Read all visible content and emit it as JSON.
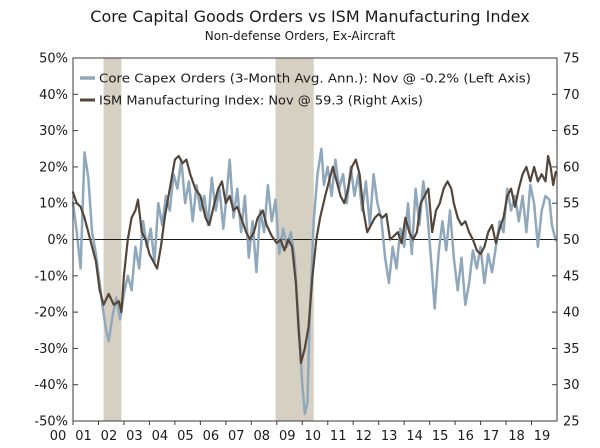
{
  "chart_data": {
    "type": "line",
    "title": "Core Capital Goods Orders vs ISM Manufacturing Index",
    "subtitle": "Non-defense Orders, Ex-Aircraft",
    "x_tick_labels": [
      "00",
      "01",
      "02",
      "03",
      "04",
      "05",
      "06",
      "07",
      "08",
      "09",
      "10",
      "11",
      "12",
      "13",
      "14",
      "15",
      "16",
      "17",
      "18",
      "19"
    ],
    "x_range": [
      2000.0,
      2019.0
    ],
    "left_axis": {
      "ticks": [
        "50%",
        "40%",
        "30%",
        "20%",
        "10%",
        "0%",
        "-10%",
        "-20%",
        "-30%",
        "-40%",
        "-50%"
      ],
      "ylim": [
        -50,
        50
      ],
      "unit": "%"
    },
    "right_axis": {
      "ticks": [
        "75",
        "70",
        "65",
        "60",
        "55",
        "50",
        "45",
        "40",
        "35",
        "30",
        "25"
      ],
      "ylim": [
        25,
        75
      ]
    },
    "zero_line": 0,
    "grid": false,
    "legend_position": "top-left",
    "recessions": [
      {
        "start": 2001.2,
        "end": 2001.9
      },
      {
        "start": 2007.95,
        "end": 2009.45
      }
    ],
    "series": [
      {
        "name": "Core Capex Orders (3-Month Avg. Ann.): Nov @ -0.2% (Left Axis)",
        "axis": "left",
        "color": "#8fa8bc",
        "points": [
          [
            2000.0,
            10
          ],
          [
            2000.15,
            2
          ],
          [
            2000.3,
            -8
          ],
          [
            2000.45,
            24
          ],
          [
            2000.6,
            17
          ],
          [
            2000.75,
            2
          ],
          [
            2000.9,
            -4
          ],
          [
            2001.05,
            -12
          ],
          [
            2001.15,
            -18
          ],
          [
            2001.3,
            -25
          ],
          [
            2001.4,
            -28
          ],
          [
            2001.55,
            -21
          ],
          [
            2001.7,
            -16
          ],
          [
            2001.85,
            -22
          ],
          [
            2002.0,
            -15
          ],
          [
            2002.15,
            -10
          ],
          [
            2002.3,
            -14
          ],
          [
            2002.45,
            -2
          ],
          [
            2002.6,
            -8
          ],
          [
            2002.75,
            5
          ],
          [
            2002.9,
            -2
          ],
          [
            2003.05,
            3
          ],
          [
            2003.2,
            -6
          ],
          [
            2003.35,
            10
          ],
          [
            2003.5,
            4
          ],
          [
            2003.65,
            12
          ],
          [
            2003.8,
            8
          ],
          [
            2003.95,
            18
          ],
          [
            2004.1,
            14
          ],
          [
            2004.25,
            22
          ],
          [
            2004.4,
            10
          ],
          [
            2004.55,
            16
          ],
          [
            2004.7,
            5
          ],
          [
            2004.85,
            15
          ],
          [
            2005.0,
            8
          ],
          [
            2005.15,
            12
          ],
          [
            2005.3,
            4
          ],
          [
            2005.45,
            17
          ],
          [
            2005.6,
            8
          ],
          [
            2005.75,
            14
          ],
          [
            2005.9,
            3
          ],
          [
            2006.0,
            10
          ],
          [
            2006.15,
            22
          ],
          [
            2006.3,
            6
          ],
          [
            2006.45,
            14
          ],
          [
            2006.6,
            2
          ],
          [
            2006.75,
            12
          ],
          [
            2006.9,
            -5
          ],
          [
            2007.05,
            5
          ],
          [
            2007.2,
            -9
          ],
          [
            2007.35,
            8
          ],
          [
            2007.5,
            2
          ],
          [
            2007.65,
            15
          ],
          [
            2007.8,
            5
          ],
          [
            2007.95,
            11
          ],
          [
            2008.1,
            -4
          ],
          [
            2008.25,
            3
          ],
          [
            2008.4,
            -2
          ],
          [
            2008.55,
            2
          ],
          [
            2008.7,
            -5
          ],
          [
            2008.85,
            -22
          ],
          [
            2009.0,
            -40
          ],
          [
            2009.1,
            -48
          ],
          [
            2009.2,
            -45
          ],
          [
            2009.3,
            -20
          ],
          [
            2009.45,
            5
          ],
          [
            2009.6,
            18
          ],
          [
            2009.75,
            25
          ],
          [
            2009.85,
            15
          ],
          [
            2010.0,
            20
          ],
          [
            2010.15,
            12
          ],
          [
            2010.3,
            22
          ],
          [
            2010.45,
            14
          ],
          [
            2010.6,
            18
          ],
          [
            2010.75,
            10
          ],
          [
            2010.9,
            20
          ],
          [
            2011.05,
            12
          ],
          [
            2011.2,
            18
          ],
          [
            2011.35,
            8
          ],
          [
            2011.5,
            16
          ],
          [
            2011.65,
            4
          ],
          [
            2011.8,
            18
          ],
          [
            2011.95,
            10
          ],
          [
            2012.1,
            6
          ],
          [
            2012.25,
            -5
          ],
          [
            2012.4,
            -12
          ],
          [
            2012.55,
            -2
          ],
          [
            2012.7,
            -8
          ],
          [
            2012.85,
            3
          ],
          [
            2013.0,
            -2
          ],
          [
            2013.15,
            10
          ],
          [
            2013.3,
            -4
          ],
          [
            2013.45,
            14
          ],
          [
            2013.6,
            4
          ],
          [
            2013.75,
            16
          ],
          [
            2013.9,
            8
          ],
          [
            2014.05,
            -5
          ],
          [
            2014.2,
            -19
          ],
          [
            2014.35,
            -4
          ],
          [
            2014.5,
            5
          ],
          [
            2014.65,
            -3
          ],
          [
            2014.8,
            8
          ],
          [
            2014.95,
            -5
          ],
          [
            2015.1,
            -14
          ],
          [
            2015.25,
            -5
          ],
          [
            2015.4,
            -18
          ],
          [
            2015.55,
            -12
          ],
          [
            2015.7,
            -3
          ],
          [
            2015.85,
            -8
          ],
          [
            2016.0,
            -2
          ],
          [
            2016.15,
            -12
          ],
          [
            2016.3,
            -4
          ],
          [
            2016.45,
            -9
          ],
          [
            2016.6,
            -2
          ],
          [
            2016.75,
            5
          ],
          [
            2016.9,
            2
          ],
          [
            2017.05,
            14
          ],
          [
            2017.2,
            8
          ],
          [
            2017.35,
            12
          ],
          [
            2017.5,
            5
          ],
          [
            2017.65,
            12
          ],
          [
            2017.8,
            2
          ],
          [
            2017.95,
            15
          ],
          [
            2018.1,
            10
          ],
          [
            2018.25,
            -2
          ],
          [
            2018.4,
            8
          ],
          [
            2018.55,
            12
          ],
          [
            2018.7,
            11
          ],
          [
            2018.8,
            4
          ],
          [
            2018.95,
            -0.2
          ]
        ]
      },
      {
        "name": "ISM Manufacturing Index: Nov @ 59.3 (Right Axis)",
        "axis": "right",
        "color": "#54463a",
        "points": [
          [
            2000.0,
            56.5
          ],
          [
            2000.15,
            55
          ],
          [
            2000.3,
            54.5
          ],
          [
            2000.45,
            53
          ],
          [
            2000.6,
            51
          ],
          [
            2000.75,
            49
          ],
          [
            2000.9,
            47
          ],
          [
            2001.05,
            43
          ],
          [
            2001.2,
            41
          ],
          [
            2001.4,
            42.5
          ],
          [
            2001.6,
            41
          ],
          [
            2001.8,
            41.5
          ],
          [
            2001.9,
            40
          ],
          [
            2002.0,
            45
          ],
          [
            2002.15,
            50
          ],
          [
            2002.3,
            53
          ],
          [
            2002.45,
            54
          ],
          [
            2002.55,
            55.5
          ],
          [
            2002.7,
            51
          ],
          [
            2002.85,
            50
          ],
          [
            2003.0,
            48
          ],
          [
            2003.15,
            47
          ],
          [
            2003.3,
            46
          ],
          [
            2003.45,
            49
          ],
          [
            2003.6,
            53
          ],
          [
            2003.8,
            57
          ],
          [
            2004.0,
            61
          ],
          [
            2004.15,
            61.5
          ],
          [
            2004.3,
            60.5
          ],
          [
            2004.45,
            61
          ],
          [
            2004.6,
            59
          ],
          [
            2004.8,
            57
          ],
          [
            2005.0,
            56
          ],
          [
            2005.2,
            53
          ],
          [
            2005.35,
            52
          ],
          [
            2005.55,
            55
          ],
          [
            2005.7,
            57
          ],
          [
            2005.85,
            58
          ],
          [
            2006.0,
            55
          ],
          [
            2006.15,
            56
          ],
          [
            2006.3,
            54
          ],
          [
            2006.45,
            54.5
          ],
          [
            2006.6,
            53
          ],
          [
            2006.8,
            51
          ],
          [
            2006.95,
            50
          ],
          [
            2007.1,
            51
          ],
          [
            2007.25,
            53
          ],
          [
            2007.45,
            54
          ],
          [
            2007.6,
            52
          ],
          [
            2007.8,
            50.5
          ],
          [
            2008.0,
            49.5
          ],
          [
            2008.15,
            50
          ],
          [
            2008.3,
            48.5
          ],
          [
            2008.45,
            50
          ],
          [
            2008.6,
            49
          ],
          [
            2008.75,
            44
          ],
          [
            2008.85,
            38
          ],
          [
            2008.95,
            33
          ],
          [
            2009.1,
            35
          ],
          [
            2009.25,
            38
          ],
          [
            2009.4,
            45
          ],
          [
            2009.55,
            50
          ],
          [
            2009.7,
            53
          ],
          [
            2009.9,
            56
          ],
          [
            2010.05,
            58
          ],
          [
            2010.2,
            60
          ],
          [
            2010.35,
            58
          ],
          [
            2010.5,
            56
          ],
          [
            2010.65,
            55
          ],
          [
            2010.8,
            57
          ],
          [
            2010.95,
            60
          ],
          [
            2011.1,
            61
          ],
          [
            2011.25,
            59
          ],
          [
            2011.4,
            54
          ],
          [
            2011.55,
            51
          ],
          [
            2011.7,
            52
          ],
          [
            2011.85,
            53
          ],
          [
            2012.0,
            53.5
          ],
          [
            2012.15,
            53
          ],
          [
            2012.3,
            53.5
          ],
          [
            2012.45,
            50
          ],
          [
            2012.6,
            50.5
          ],
          [
            2012.75,
            51
          ],
          [
            2012.9,
            49.5
          ],
          [
            2013.05,
            53
          ],
          [
            2013.2,
            51
          ],
          [
            2013.35,
            50
          ],
          [
            2013.5,
            51
          ],
          [
            2013.65,
            55
          ],
          [
            2013.8,
            56
          ],
          [
            2013.95,
            57
          ],
          [
            2014.1,
            51
          ],
          [
            2014.25,
            54
          ],
          [
            2014.4,
            55
          ],
          [
            2014.55,
            57
          ],
          [
            2014.7,
            58
          ],
          [
            2014.85,
            57
          ],
          [
            2014.95,
            55
          ],
          [
            2015.1,
            53
          ],
          [
            2015.25,
            52
          ],
          [
            2015.4,
            52.5
          ],
          [
            2015.55,
            51
          ],
          [
            2015.7,
            50
          ],
          [
            2015.85,
            48.5
          ],
          [
            2016.0,
            48
          ],
          [
            2016.15,
            49
          ],
          [
            2016.3,
            51
          ],
          [
            2016.45,
            52
          ],
          [
            2016.6,
            49.5
          ],
          [
            2016.75,
            51.5
          ],
          [
            2016.9,
            53
          ],
          [
            2017.05,
            56
          ],
          [
            2017.2,
            57
          ],
          [
            2017.35,
            54.5
          ],
          [
            2017.5,
            57
          ],
          [
            2017.65,
            59
          ],
          [
            2017.8,
            60
          ],
          [
            2017.95,
            58
          ],
          [
            2018.1,
            60
          ],
          [
            2018.25,
            58
          ],
          [
            2018.4,
            59
          ],
          [
            2018.55,
            58
          ],
          [
            2018.65,
            61.5
          ],
          [
            2018.75,
            60
          ],
          [
            2018.85,
            57.5
          ],
          [
            2018.95,
            59.3
          ]
        ]
      }
    ]
  }
}
